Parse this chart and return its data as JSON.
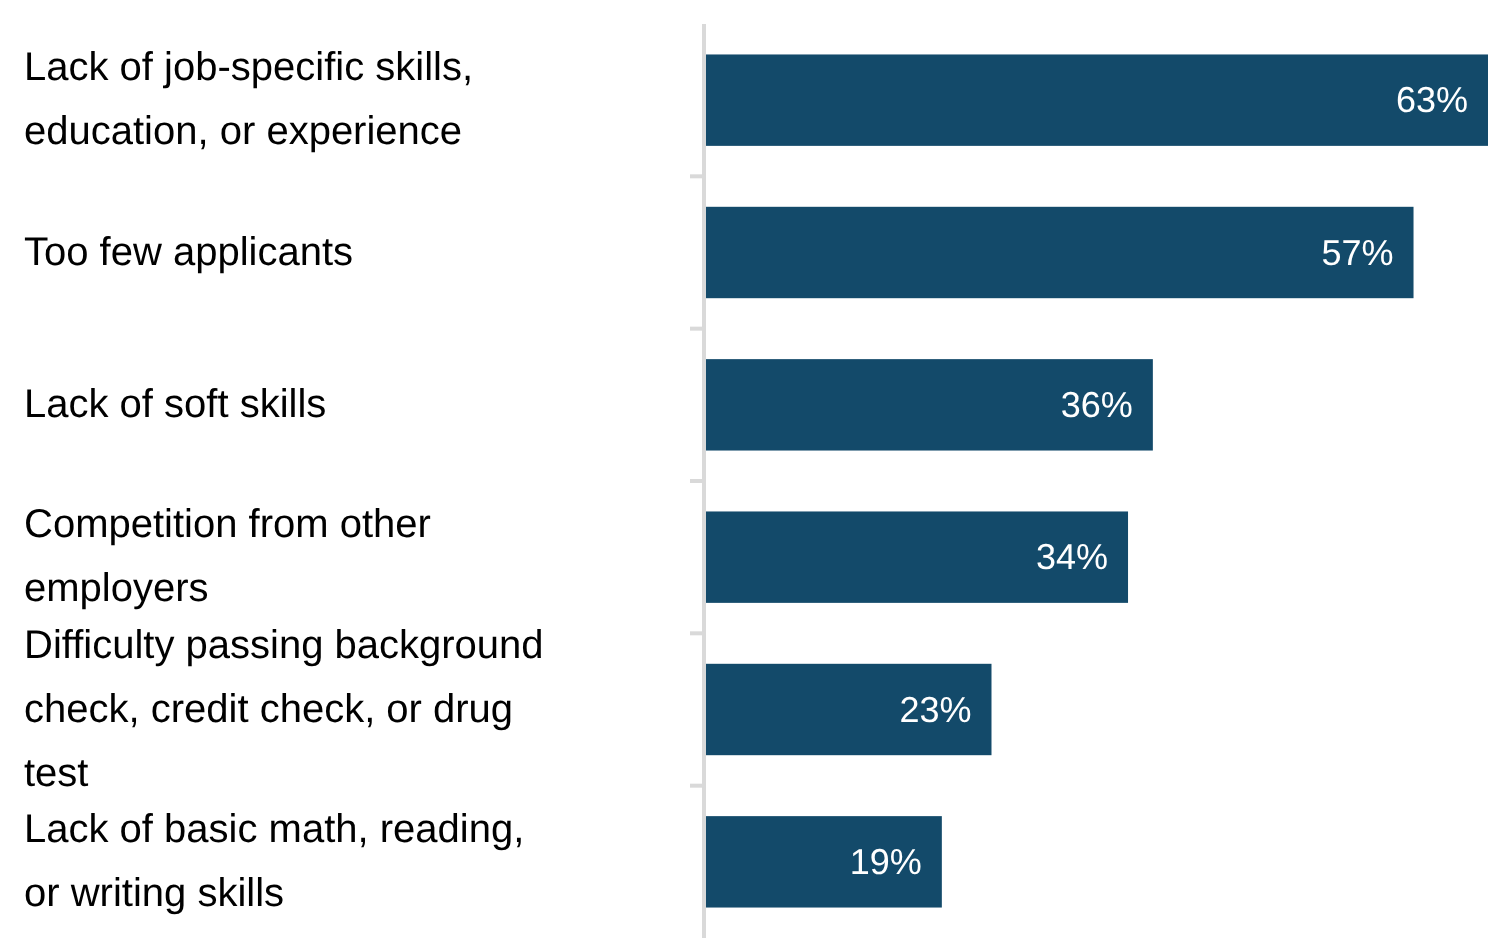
{
  "chart_data": {
    "type": "bar",
    "orientation": "horizontal",
    "categories": [
      "Lack of job-specific skills, education, or experience",
      "Too few applicants",
      "Lack of soft skills",
      "Competition from other employers",
      "Difficulty passing background check, credit check, or drug test",
      "Lack of basic math, reading, or writing skills"
    ],
    "values": [
      63,
      57,
      36,
      34,
      23,
      19
    ],
    "value_labels": [
      "63%",
      "57%",
      "36%",
      "34%",
      "23%",
      "19%"
    ],
    "color": "#134a6a"
  }
}
